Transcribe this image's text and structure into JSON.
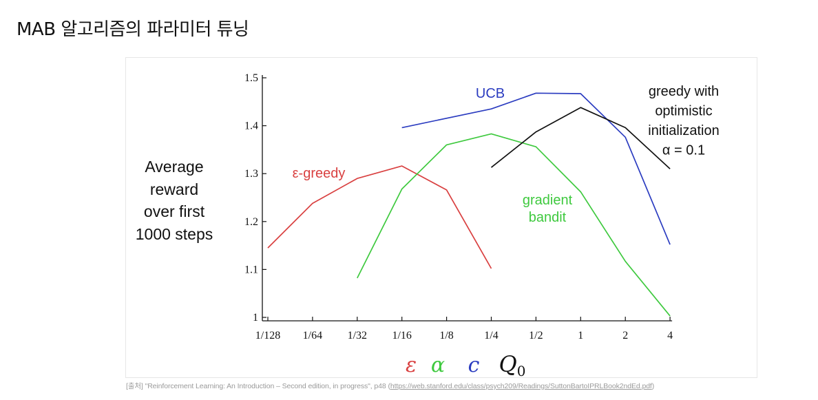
{
  "page": {
    "title": "MAB 알고리즘의 파라미터 튜닝",
    "source_prefix": "[출처] \"Reinforcement Learning: An Introduction – Second edition, in progress\", p48 (",
    "source_url": "https://web.stanford.edu/class/psych209/Readings/SuttonBartoIPRLBook2ndEd.pdf",
    "source_suffix": ")"
  },
  "chart_data": {
    "type": "line",
    "title": "",
    "xlabel": "",
    "ylabel_lines": [
      "Average",
      "reward",
      "over first",
      "1000 steps"
    ],
    "categories": [
      "1/128",
      "1/64",
      "1/32",
      "1/16",
      "1/8",
      "1/4",
      "1/2",
      "1",
      "2",
      "4"
    ],
    "yticks": [
      "1",
      "1.1",
      "1.2",
      "1.3",
      "1.4",
      "1.5"
    ],
    "ylim": [
      1.0,
      1.5
    ],
    "grid": false,
    "x_symbols": [
      {
        "text": "ε",
        "color": "#d94040"
      },
      {
        "text": "α",
        "color": "#3ec93e"
      },
      {
        "text": "c",
        "color": "#2b3cc0"
      },
      {
        "text": "Q0",
        "color": "#111111"
      }
    ],
    "series": [
      {
        "name": "ε-greedy",
        "label_lines": [
          "ε-greedy"
        ],
        "color": "#d94040",
        "points": [
          [
            "1/128",
            1.145
          ],
          [
            "1/64",
            1.238
          ],
          [
            "1/32",
            1.29
          ],
          [
            "1/16",
            1.316
          ],
          [
            "1/8",
            1.266
          ],
          [
            "1/4",
            1.102
          ]
        ]
      },
      {
        "name": "gradient bandit",
        "label_lines": [
          "gradient",
          "bandit"
        ],
        "color": "#3ec93e",
        "points": [
          [
            "1/32",
            1.082
          ],
          [
            "1/16",
            1.268
          ],
          [
            "1/8",
            1.36
          ],
          [
            "1/4",
            1.383
          ],
          [
            "1/2",
            1.356
          ],
          [
            "1",
            1.262
          ],
          [
            "2",
            1.117
          ],
          [
            "4",
            1.003
          ]
        ]
      },
      {
        "name": "UCB",
        "label_lines": [
          "UCB"
        ],
        "color": "#2b3cc0",
        "points": [
          [
            "1/16",
            1.396
          ],
          [
            "1/4",
            1.435
          ],
          [
            "1/2",
            1.468
          ],
          [
            "1",
            1.467
          ],
          [
            "2",
            1.376
          ],
          [
            "4",
            1.152
          ]
        ]
      },
      {
        "name": "greedy with optimistic initialization α = 0.1",
        "label_lines": [
          "greedy with",
          "optimistic",
          "initialization",
          "α = 0.1"
        ],
        "color": "#111111",
        "points": [
          [
            "1/4",
            1.313
          ],
          [
            "1/2",
            1.387
          ],
          [
            "1",
            1.438
          ],
          [
            "2",
            1.396
          ],
          [
            "4",
            1.31
          ]
        ]
      }
    ]
  }
}
